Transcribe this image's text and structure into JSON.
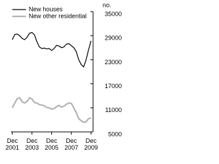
{
  "chart_data": {
    "type": "line",
    "y_label": "no.",
    "categories": [
      "Dec 2001",
      null,
      null,
      null,
      null,
      null,
      null,
      null,
      "Dec 2003",
      null,
      null,
      null,
      null,
      null,
      null,
      null,
      "Dec 2005",
      null,
      null,
      null,
      null,
      null,
      null,
      null,
      "Dec 2007",
      null,
      null,
      null,
      null,
      null,
      null,
      null,
      "Dec 2009"
    ],
    "series": [
      {
        "name": "New houses",
        "color": "#000000",
        "values": [
          28000,
          29300,
          29400,
          29000,
          28300,
          28000,
          28600,
          29600,
          29800,
          29200,
          27500,
          26200,
          25800,
          25900,
          25700,
          25800,
          25300,
          25800,
          26600,
          26400,
          26000,
          26200,
          26900,
          27000,
          26500,
          26000,
          25000,
          23000,
          21800,
          21200,
          23000,
          25500,
          27700
        ]
      },
      {
        "name": "New other residential",
        "color": "#b4b4b4",
        "values": [
          11000,
          12200,
          13300,
          13500,
          12500,
          12200,
          12600,
          13500,
          13200,
          12300,
          12200,
          11800,
          11700,
          11500,
          11100,
          11000,
          10700,
          10800,
          11300,
          11600,
          11200,
          11400,
          11900,
          12200,
          12100,
          11000,
          9800,
          8300,
          7800,
          7400,
          7500,
          8300,
          8500
        ]
      }
    ],
    "ylim": [
      5000,
      35000
    ],
    "yticks": [
      5000,
      11000,
      17000,
      23000,
      29000,
      35000
    ],
    "legend": "top-left"
  }
}
